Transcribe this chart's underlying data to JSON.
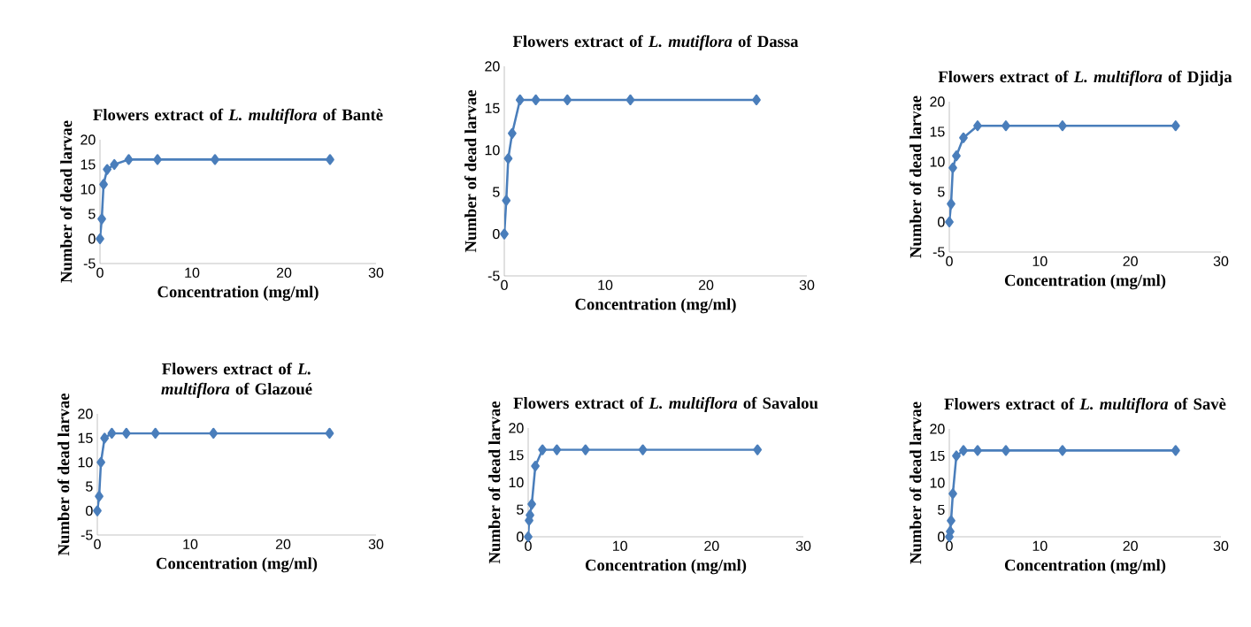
{
  "chart_data": [
    {
      "type": "line",
      "title": "Flowers extract of *L. multiflora* of Bantè",
      "xlabel": "Concentration (mg/ml)",
      "ylabel": "Number of dead larvae",
      "x": [
        0,
        0.195,
        0.39,
        0.78,
        1.56,
        3.125,
        6.25,
        12.5,
        25
      ],
      "values": [
        0,
        4,
        11,
        14,
        15,
        16,
        16,
        16,
        16
      ],
      "color": "#4a7ebb",
      "xlim": [
        0,
        30
      ],
      "ylim": [
        -5,
        20
      ],
      "xticks": [
        0,
        10,
        20,
        30
      ],
      "yticks": [
        -5,
        0,
        5,
        10,
        15,
        20
      ],
      "marker": "diamond",
      "line_style": "solid"
    },
    {
      "type": "line",
      "title": "Flowers extract of *L. mutiflora* of Dassa",
      "xlabel": "Concentration (mg/ml)",
      "ylabel": "Number of dead larvae",
      "x": [
        0,
        0.195,
        0.39,
        0.78,
        1.56,
        3.125,
        6.25,
        12.5,
        25
      ],
      "values": [
        0,
        4,
        9,
        12,
        16,
        16,
        16,
        16,
        16
      ],
      "color": "#4a7ebb",
      "xlim": [
        0,
        30
      ],
      "ylim": [
        -5,
        20
      ],
      "xticks": [
        0,
        10,
        20,
        30
      ],
      "yticks": [
        -5,
        0,
        5,
        10,
        15,
        20
      ],
      "marker": "diamond",
      "line_style": "solid"
    },
    {
      "type": "line",
      "title": "Flowers extract of *L. multiflora* of Djidja",
      "xlabel": "Concentration (mg/ml)",
      "ylabel": "Number of dead larvae",
      "x": [
        0,
        0.195,
        0.39,
        0.78,
        1.56,
        3.125,
        6.25,
        12.5,
        25
      ],
      "values": [
        0,
        3,
        9,
        11,
        14,
        16,
        16,
        16,
        16
      ],
      "color": "#4a7ebb",
      "xlim": [
        0,
        30
      ],
      "ylim": [
        -5,
        20
      ],
      "xticks": [
        0,
        10,
        20,
        30
      ],
      "yticks": [
        -5,
        0,
        5,
        10,
        15,
        20
      ],
      "marker": "diamond",
      "line_style": "solid"
    },
    {
      "type": "line",
      "title": "Flowers extract of *L. multiflora* of Glazoué",
      "xlabel": "Concentration (mg/ml)",
      "ylabel": "Number of dead larvae",
      "x": [
        0,
        0.195,
        0.39,
        0.78,
        1.56,
        3.125,
        6.25,
        12.5,
        25
      ],
      "values": [
        0,
        3,
        10,
        15,
        16,
        16,
        16,
        16,
        16
      ],
      "color": "#4a7ebb",
      "xlim": [
        0,
        30
      ],
      "ylim": [
        -5,
        20
      ],
      "xticks": [
        0,
        10,
        20,
        30
      ],
      "yticks": [
        -5,
        0,
        5,
        10,
        15,
        20
      ],
      "marker": "diamond",
      "line_style": "solid"
    },
    {
      "type": "line",
      "title": "Flowers extract of *L. multiflora* of Savalou",
      "xlabel": "Concentration (mg/ml)",
      "ylabel": "Number of dead larvae",
      "x": [
        0,
        0.098,
        0.195,
        0.39,
        0.78,
        1.56,
        3.125,
        6.25,
        12.5,
        25
      ],
      "values": [
        0,
        3,
        4,
        6,
        13,
        16,
        16,
        16,
        16,
        16
      ],
      "color": "#4a7ebb",
      "xlim": [
        0,
        30
      ],
      "ylim": [
        0,
        20
      ],
      "xticks": [
        0,
        10,
        20,
        30
      ],
      "yticks": [
        0,
        5,
        10,
        15,
        20
      ],
      "marker": "diamond",
      "line_style": "solid"
    },
    {
      "type": "line",
      "title": "Flowers extract of *L. multiflora* of Savè",
      "xlabel": "Concentration (mg/ml)",
      "ylabel": "Number of dead larvae",
      "x": [
        0,
        0.098,
        0.195,
        0.39,
        0.78,
        1.56,
        3.125,
        6.25,
        12.5,
        25
      ],
      "values": [
        0,
        1,
        3,
        8,
        15,
        16,
        16,
        16,
        16,
        16
      ],
      "color": "#4a7ebb",
      "xlim": [
        0,
        30
      ],
      "ylim": [
        0,
        20
      ],
      "xticks": [
        0,
        10,
        20,
        30
      ],
      "yticks": [
        0,
        5,
        10,
        15,
        20
      ],
      "marker": "diamond",
      "line_style": "solid"
    }
  ]
}
